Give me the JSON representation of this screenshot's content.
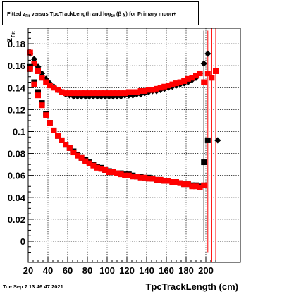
{
  "title": {
    "prefix": "Fitted  z",
    "z_subscript": "Fit",
    "middle": "  versus TpcTrackLength and log",
    "log_subscript": "10",
    "suffix": " (β  γ) for Primary muon+"
  },
  "timestamp": "Tue Sep  7 13:46:47 2021",
  "chart_data": {
    "type": "scatter",
    "xlabel": "TpcTrackLength (cm)",
    "ylabel": "z",
    "ylabel_subscript": "Fit",
    "xlim": [
      20,
      212
    ],
    "ylim": [
      -0.025,
      0.195
    ],
    "x_ticks": [
      20,
      40,
      60,
      80,
      100,
      120,
      140,
      160,
      180,
      200
    ],
    "y_ticks": [
      0,
      0.02,
      0.04,
      0.06,
      0.08,
      0.1,
      0.12,
      0.14,
      0.16,
      0.18
    ],
    "y_tick_labels": [
      "0",
      "0.02",
      "0.04",
      "0.06",
      "0.08",
      "0.1",
      "0.12",
      "0.14",
      "0.16",
      "0.18"
    ],
    "grid": true,
    "series": [
      {
        "marker": "diamond",
        "color": "#000000",
        "points": [
          [
            22,
            0.171
          ],
          [
            26,
            0.166
          ],
          [
            30,
            0.159
          ],
          [
            34,
            0.153
          ],
          [
            38,
            0.148
          ],
          [
            42,
            0.144
          ],
          [
            46,
            0.141
          ],
          [
            50,
            0.138
          ],
          [
            54,
            0.136
          ],
          [
            58,
            0.134
          ],
          [
            62,
            0.133
          ],
          [
            66,
            0.132
          ],
          [
            70,
            0.132
          ],
          [
            74,
            0.132
          ],
          [
            78,
            0.132
          ],
          [
            82,
            0.132
          ],
          [
            86,
            0.132
          ],
          [
            90,
            0.132
          ],
          [
            94,
            0.132
          ],
          [
            98,
            0.132
          ],
          [
            102,
            0.132
          ],
          [
            106,
            0.132
          ],
          [
            110,
            0.132
          ],
          [
            114,
            0.132
          ],
          [
            118,
            0.133
          ],
          [
            122,
            0.133
          ],
          [
            126,
            0.133
          ],
          [
            130,
            0.134
          ],
          [
            134,
            0.134
          ],
          [
            138,
            0.135
          ],
          [
            142,
            0.136
          ],
          [
            146,
            0.137
          ],
          [
            150,
            0.137
          ],
          [
            154,
            0.138
          ],
          [
            158,
            0.139
          ],
          [
            162,
            0.14
          ],
          [
            166,
            0.141
          ],
          [
            170,
            0.142
          ],
          [
            174,
            0.143
          ],
          [
            178,
            0.144
          ],
          [
            182,
            0.145
          ],
          [
            186,
            0.147
          ],
          [
            190,
            0.149
          ],
          [
            194,
            0.153
          ],
          [
            198,
            0.162
          ],
          [
            202,
            0.171
          ],
          [
            212,
            0.092
          ]
        ]
      },
      {
        "marker": "square",
        "color": "#ff0000",
        "points": [
          [
            22,
            0.172
          ],
          [
            26,
            0.162
          ],
          [
            30,
            0.155
          ],
          [
            34,
            0.149
          ],
          [
            38,
            0.145
          ],
          [
            42,
            0.142
          ],
          [
            46,
            0.14
          ],
          [
            50,
            0.138
          ],
          [
            54,
            0.136
          ],
          [
            58,
            0.135
          ],
          [
            62,
            0.135
          ],
          [
            66,
            0.135
          ],
          [
            70,
            0.135
          ],
          [
            74,
            0.135
          ],
          [
            78,
            0.135
          ],
          [
            82,
            0.135
          ],
          [
            86,
            0.135
          ],
          [
            90,
            0.135
          ],
          [
            94,
            0.135
          ],
          [
            98,
            0.135
          ],
          [
            102,
            0.135
          ],
          [
            106,
            0.135
          ],
          [
            110,
            0.135
          ],
          [
            114,
            0.135
          ],
          [
            118,
            0.135
          ],
          [
            122,
            0.136
          ],
          [
            126,
            0.136
          ],
          [
            130,
            0.136
          ],
          [
            134,
            0.137
          ],
          [
            138,
            0.137
          ],
          [
            142,
            0.138
          ],
          [
            146,
            0.138
          ],
          [
            150,
            0.139
          ],
          [
            154,
            0.14
          ],
          [
            158,
            0.141
          ],
          [
            162,
            0.142
          ],
          [
            166,
            0.143
          ],
          [
            170,
            0.144
          ],
          [
            174,
            0.145
          ],
          [
            178,
            0.146
          ],
          [
            182,
            0.148
          ],
          [
            186,
            0.149
          ],
          [
            190,
            0.151
          ],
          [
            194,
            0.153
          ],
          [
            198,
            0.145
          ],
          [
            202,
            0.153
          ],
          [
            206,
            0.149
          ],
          [
            210,
            0.155
          ]
        ]
      },
      {
        "marker": "square",
        "color": "#000000",
        "points": [
          [
            22,
            0.159
          ],
          [
            26,
            0.145
          ],
          [
            30,
            0.136
          ],
          [
            34,
            0.126
          ],
          [
            38,
            0.116
          ],
          [
            42,
            0.108
          ],
          [
            46,
            0.101
          ],
          [
            50,
            0.096
          ],
          [
            54,
            0.092
          ],
          [
            58,
            0.088
          ],
          [
            62,
            0.085
          ],
          [
            66,
            0.082
          ],
          [
            70,
            0.079
          ],
          [
            74,
            0.076
          ],
          [
            78,
            0.074
          ],
          [
            82,
            0.072
          ],
          [
            86,
            0.07
          ],
          [
            90,
            0.068
          ],
          [
            94,
            0.067
          ],
          [
            98,
            0.065
          ],
          [
            102,
            0.064
          ],
          [
            106,
            0.063
          ],
          [
            110,
            0.062
          ],
          [
            114,
            0.062
          ],
          [
            118,
            0.061
          ],
          [
            122,
            0.061
          ],
          [
            126,
            0.06
          ],
          [
            130,
            0.059
          ],
          [
            134,
            0.059
          ],
          [
            138,
            0.058
          ],
          [
            142,
            0.058
          ],
          [
            146,
            0.057
          ],
          [
            150,
            0.056
          ],
          [
            154,
            0.056
          ],
          [
            158,
            0.055
          ],
          [
            162,
            0.055
          ],
          [
            166,
            0.054
          ],
          [
            170,
            0.054
          ],
          [
            174,
            0.053
          ],
          [
            178,
            0.052
          ],
          [
            182,
            0.052
          ],
          [
            186,
            0.051
          ],
          [
            190,
            0.051
          ],
          [
            194,
            0.05
          ],
          [
            198,
            0.072
          ],
          [
            202,
            0.092
          ]
        ]
      },
      {
        "marker": "square",
        "color": "#ff0000",
        "points": [
          [
            22,
            0.157
          ],
          [
            26,
            0.143
          ],
          [
            30,
            0.133
          ],
          [
            34,
            0.124
          ],
          [
            38,
            0.115
          ],
          [
            42,
            0.108
          ],
          [
            46,
            0.101
          ],
          [
            50,
            0.096
          ],
          [
            54,
            0.092
          ],
          [
            58,
            0.088
          ],
          [
            62,
            0.085
          ],
          [
            66,
            0.081
          ],
          [
            70,
            0.078
          ],
          [
            74,
            0.076
          ],
          [
            78,
            0.073
          ],
          [
            82,
            0.071
          ],
          [
            86,
            0.069
          ],
          [
            90,
            0.067
          ],
          [
            94,
            0.066
          ],
          [
            98,
            0.065
          ],
          [
            102,
            0.063
          ],
          [
            106,
            0.063
          ],
          [
            110,
            0.062
          ],
          [
            114,
            0.061
          ],
          [
            118,
            0.06
          ],
          [
            122,
            0.06
          ],
          [
            126,
            0.059
          ],
          [
            130,
            0.059
          ],
          [
            134,
            0.058
          ],
          [
            138,
            0.058
          ],
          [
            142,
            0.057
          ],
          [
            146,
            0.057
          ],
          [
            150,
            0.056
          ],
          [
            154,
            0.056
          ],
          [
            158,
            0.055
          ],
          [
            162,
            0.055
          ],
          [
            166,
            0.054
          ],
          [
            170,
            0.054
          ],
          [
            174,
            0.053
          ],
          [
            178,
            0.052
          ],
          [
            182,
            0.052
          ],
          [
            186,
            0.05
          ],
          [
            190,
            0.05
          ],
          [
            194,
            0.049
          ],
          [
            198,
            0.051
          ]
        ]
      }
    ]
  }
}
